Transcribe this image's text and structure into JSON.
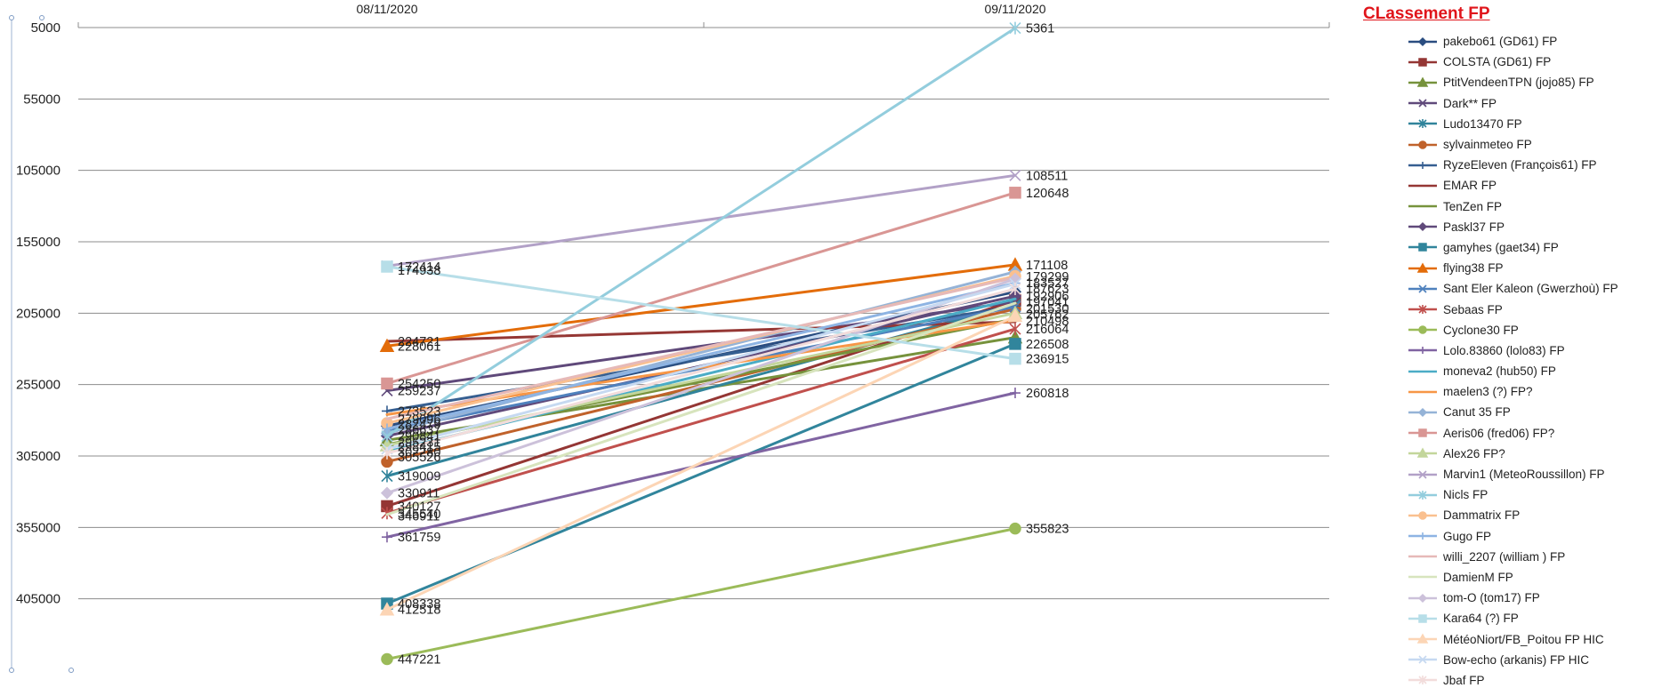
{
  "chart_data": {
    "type": "line",
    "title": "CLassement FP",
    "categories": [
      "08/11/2020",
      "09/11/2020"
    ],
    "ylim": [
      5000,
      455000
    ],
    "y_inverted": true,
    "y_ticks": [
      5000,
      55000,
      105000,
      155000,
      205000,
      255000,
      305000,
      355000,
      405000
    ],
    "grid": true,
    "legend_position": "right",
    "series": [
      {
        "name": "pakebo61 (GD61) FP",
        "values": [
          284000,
          190000
        ],
        "color": "#2a4d80",
        "marker": "diamond"
      },
      {
        "name": "COLSTA (GD61) FP",
        "values": [
          340127,
          196000
        ],
        "color": "#943634",
        "marker": "square"
      },
      {
        "name": "PtitVendeenTPN (jojo85) FP",
        "values": [
          294000,
          222000
        ],
        "color": "#76923c",
        "marker": "triangle"
      },
      {
        "name": "Dark** FP",
        "values": [
          259237,
          197000
        ],
        "color": "#5f497a",
        "marker": "x"
      },
      {
        "name": "Ludo13470 FP",
        "values": [
          319009,
          199000
        ],
        "color": "#31849b",
        "marker": "star"
      },
      {
        "name": "sylvainmeteo FP",
        "values": [
          309000,
          202000
        ],
        "color": "#c0622b",
        "marker": "circle"
      },
      {
        "name": "RyzeEleven (François61) FP",
        "values": [
          273523,
          200000
        ],
        "color": "#365f91",
        "marker": "plus"
      },
      {
        "name": "EMAR FP",
        "values": [
          224721,
          211000
        ],
        "color": "#953734",
        "marker": "none"
      },
      {
        "name": "TenZen  FP",
        "values": [
          297000,
          209000
        ],
        "color": "#77933c",
        "marker": "none"
      },
      {
        "name": "Paskl37 FP",
        "values": [
          291000,
          193000
        ],
        "color": "#604a7b",
        "marker": "diamond"
      },
      {
        "name": "gamyhes (gaet34) FP",
        "values": [
          408338,
          226508
        ],
        "color": "#31859c",
        "marker": "square"
      },
      {
        "name": "flying38 FP",
        "values": [
          228000,
          171108
        ],
        "color": "#e36c09",
        "marker": "triangle"
      },
      {
        "name": "Sant Eler Kaleon (Gwerzhoù) FP",
        "values": [
          287000,
          200500
        ],
        "color": "#4f81bd",
        "marker": "x"
      },
      {
        "name": "Sebaas FP",
        "values": [
          345000,
          216064
        ],
        "color": "#c0504d",
        "marker": "star"
      },
      {
        "name": "Cyclone30  FP",
        "values": [
          447221,
          355823
        ],
        "color": "#9bbb59",
        "marker": "circle"
      },
      {
        "name": "Lolo.83860 (lolo83) FP",
        "values": [
          361759,
          260818
        ],
        "color": "#8064a2",
        "marker": "plus"
      },
      {
        "name": "moneva2 (hub50) FP",
        "values": [
          302000,
          195000
        ],
        "color": "#4bacc6",
        "marker": "none"
      },
      {
        "name": "maelen3 (?) FP?",
        "values": [
          276000,
          210000
        ],
        "color": "#f79646",
        "marker": "none"
      },
      {
        "name": "Canut 35  FP",
        "values": [
          289000,
          176000
        ],
        "color": "#95b3d7",
        "marker": "diamond"
      },
      {
        "name": "Aeris06 (fred06) FP?",
        "values": [
          254250,
          120648
        ],
        "color": "#d99694",
        "marker": "square"
      },
      {
        "name": "Alex26 FP?",
        "values": [
          297500,
          205000
        ],
        "color": "#c3d69b",
        "marker": "triangle"
      },
      {
        "name": "Marvin1 (MeteoRoussillon) FP",
        "values": [
          172000,
          108511
        ],
        "color": "#b2a1c7",
        "marker": "x"
      },
      {
        "name": "Nicls FP",
        "values": [
          291000,
          5361
        ],
        "color": "#93cddd",
        "marker": "star"
      },
      {
        "name": "Dammatrix FP",
        "values": [
          282000,
          179000
        ],
        "color": "#fac08f",
        "marker": "circle"
      },
      {
        "name": "Gugo FP",
        "values": [
          286000,
          184000
        ],
        "color": "#8eb4e3",
        "marker": "plus"
      },
      {
        "name": "willi_2207 (william ) FP",
        "values": [
          279000,
          180000
        ],
        "color": "#e6b9b8",
        "marker": "none"
      },
      {
        "name": "DamienM FP",
        "values": [
          346000,
          198000
        ],
        "color": "#d7e4bd",
        "marker": "none"
      },
      {
        "name": "tom-O (tom17) FP",
        "values": [
          330911,
          181000
        ],
        "color": "#ccc1da",
        "marker": "diamond"
      },
      {
        "name": "Kara64 (?) FP",
        "values": [
          172414,
          236915
        ],
        "color": "#b7dee8",
        "marker": "square"
      },
      {
        "name": "MétéoNiort/FB_Poitou FP HIC",
        "values": [
          412518,
          207000
        ],
        "color": "#fcd5b5",
        "marker": "triangle"
      },
      {
        "name": "Bow-echo (arkanis) FP HIC",
        "values": [
          300000,
          184500
        ],
        "color": "#c6d9f1",
        "marker": "x"
      },
      {
        "name": "Jbaf FP",
        "values": [
          303000,
          188000
        ],
        "color": "#f2dcdb",
        "marker": "star"
      }
    ],
    "data_labels": [
      {
        "category": 0,
        "text": "172414",
        "value": 172414
      },
      {
        "category": 0,
        "text": "174938",
        "value": 174938
      },
      {
        "category": 0,
        "text": "224721",
        "value": 224721
      },
      {
        "category": 0,
        "text": "228061",
        "value": 228061
      },
      {
        "category": 0,
        "text": "254250",
        "value": 254250
      },
      {
        "category": 0,
        "text": "259237",
        "value": 259237
      },
      {
        "category": 0,
        "text": "273523",
        "value": 273523
      },
      {
        "category": 0,
        "text": "279096",
        "value": 279096
      },
      {
        "category": 0,
        "text": "282479",
        "value": 282479
      },
      {
        "category": 0,
        "text": "286637",
        "value": 286637
      },
      {
        "category": 0,
        "text": "290841",
        "value": 290841
      },
      {
        "category": 0,
        "text": "295231",
        "value": 295231
      },
      {
        "category": 0,
        "text": "298415",
        "value": 298415
      },
      {
        "category": 0,
        "text": "302280",
        "value": 302280
      },
      {
        "category": 0,
        "text": "305526",
        "value": 305526
      },
      {
        "category": 0,
        "text": "319009",
        "value": 319009
      },
      {
        "category": 0,
        "text": "330911",
        "value": 330911
      },
      {
        "category": 0,
        "text": "340127",
        "value": 340127
      },
      {
        "category": 0,
        "text": "345540",
        "value": 345540
      },
      {
        "category": 0,
        "text": "346911",
        "value": 346911
      },
      {
        "category": 0,
        "text": "361759",
        "value": 361759
      },
      {
        "category": 0,
        "text": "408338",
        "value": 408338
      },
      {
        "category": 0,
        "text": "412518",
        "value": 412518
      },
      {
        "category": 0,
        "text": "447221",
        "value": 447221
      },
      {
        "category": 1,
        "text": "5361",
        "value": 5361
      },
      {
        "category": 1,
        "text": "108511",
        "value": 108511
      },
      {
        "category": 1,
        "text": "120648",
        "value": 120648
      },
      {
        "category": 1,
        "text": "171108",
        "value": 171108
      },
      {
        "category": 1,
        "text": "179299",
        "value": 179299
      },
      {
        "category": 1,
        "text": "183527",
        "value": 183527
      },
      {
        "category": 1,
        "text": "187623",
        "value": 187623
      },
      {
        "category": 1,
        "text": "192906",
        "value": 192906
      },
      {
        "category": 1,
        "text": "197041",
        "value": 197041
      },
      {
        "category": 1,
        "text": "201530",
        "value": 201530
      },
      {
        "category": 1,
        "text": "205762",
        "value": 205762
      },
      {
        "category": 1,
        "text": "210498",
        "value": 210498
      },
      {
        "category": 1,
        "text": "216064",
        "value": 216064
      },
      {
        "category": 1,
        "text": "226508",
        "value": 226508
      },
      {
        "category": 1,
        "text": "236915",
        "value": 236915
      },
      {
        "category": 1,
        "text": "260818",
        "value": 260818
      },
      {
        "category": 1,
        "text": "355823",
        "value": 355823
      }
    ]
  }
}
